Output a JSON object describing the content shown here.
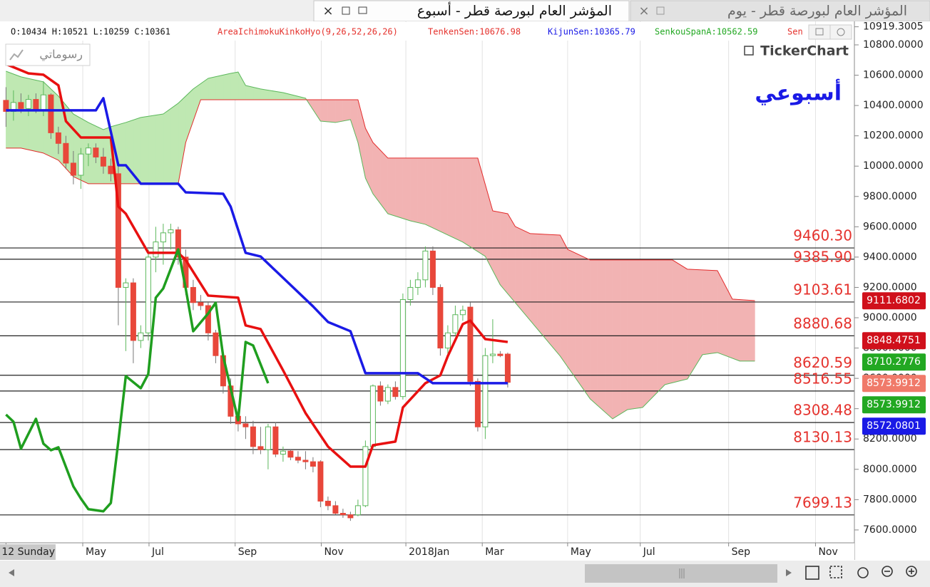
{
  "tabs": {
    "active": "المؤشر العام لبورصة قطر - أسبوع",
    "inactive": "المؤشر العام لبورصة قطر - يوم"
  },
  "toolbar": {
    "drawings_button": "رسوماتي"
  },
  "info": {
    "ohlc": "O:10434 H:10521 L:10259 C:10361",
    "indicator": "AreaIchimokuKinkoHyo(9,26,52,26,26)",
    "tenkan": "TenkenSen:10676.98",
    "kijun": "KijunSen:10365.79",
    "senkou_a": "SenkouSpanA:10562.59",
    "senkou_b": "Sen"
  },
  "chart_data": {
    "type": "candlestick",
    "watermark": "أسبوعي",
    "logo": "TickerChart",
    "up_color": "#5cb85c",
    "down_color": "#e8473a",
    "x": [
      0,
      1,
      2,
      3,
      4,
      5,
      6,
      7,
      8,
      9,
      10,
      11,
      12,
      13,
      14,
      15,
      16,
      17,
      18,
      19,
      20,
      21,
      22,
      23,
      24,
      25,
      26,
      27,
      28,
      29,
      30,
      31,
      32,
      33,
      34,
      35,
      36,
      37,
      38,
      39,
      40,
      41,
      42,
      43,
      44,
      45,
      46,
      47,
      48,
      49,
      50,
      51,
      52,
      53,
      54,
      55,
      56,
      57,
      58,
      59,
      60,
      61,
      62,
      63,
      64,
      65,
      66,
      67
    ],
    "open": [
      10434,
      10361,
      10420,
      10380,
      10440,
      10370,
      10470,
      10220,
      10150,
      10020,
      9940,
      10080,
      10120,
      10060,
      10000,
      9950,
      9200,
      9230,
      8850,
      8900,
      9400,
      9500,
      9560,
      9580,
      9400,
      9200,
      9100,
      9080,
      8900,
      8750,
      8550,
      8350,
      8300,
      8280,
      8150,
      8130,
      8280,
      8100,
      8120,
      8080,
      8060,
      8050,
      8050,
      7790,
      7760,
      7710,
      7700,
      7700,
      7760,
      8150,
      8550,
      8450,
      8540,
      8480,
      9120,
      9200,
      9250,
      9440,
      9200,
      8800,
      8900,
      9020,
      9070,
      8580,
      8280,
      8750,
      8760,
      8760
    ],
    "high": [
      10521,
      10500,
      10480,
      10470,
      10480,
      10560,
      10480,
      10260,
      10200,
      10100,
      10120,
      10150,
      10150,
      10120,
      10050,
      10000,
      9260,
      9260,
      8950,
      9450,
      9600,
      9620,
      9620,
      9600,
      9450,
      9250,
      9150,
      9100,
      8920,
      8780,
      8600,
      8400,
      8350,
      8320,
      8280,
      8300,
      8310,
      8150,
      8130,
      8120,
      8120,
      8080,
      8060,
      7820,
      7790,
      7740,
      7720,
      7800,
      8190,
      8560,
      8580,
      8560,
      8580,
      9160,
      9250,
      9300,
      9470,
      9470,
      9220,
      8950,
      9080,
      9080,
      9100,
      8600,
      8800,
      8990,
      8780,
      8770
    ],
    "low": [
      10259,
      10300,
      10350,
      10330,
      10350,
      10330,
      10180,
      10080,
      9980,
      9880,
      9850,
      10000,
      10020,
      9950,
      9900,
      8950,
      8780,
      8700,
      8800,
      8850,
      9300,
      9350,
      9450,
      9350,
      9150,
      9050,
      9050,
      8850,
      8700,
      8500,
      8300,
      8250,
      8200,
      8100,
      8100,
      8000,
      8080,
      8050,
      8060,
      8040,
      8000,
      7980,
      7750,
      7730,
      7700,
      7680,
      7660,
      7690,
      7750,
      8130,
      8420,
      8430,
      8460,
      8460,
      9080,
      9150,
      9200,
      9150,
      8750,
      8760,
      8880,
      8980,
      8550,
      8250,
      8200,
      8700,
      8740,
      8540
    ],
    "close": [
      10361,
      10420,
      10380,
      10440,
      10370,
      10470,
      10220,
      10150,
      10020,
      9940,
      10080,
      10120,
      10060,
      10000,
      9950,
      9200,
      9230,
      8850,
      8900,
      9400,
      9500,
      9560,
      9580,
      9400,
      9200,
      9100,
      9080,
      8900,
      8750,
      8550,
      8350,
      8300,
      8280,
      8150,
      8130,
      8280,
      8100,
      8120,
      8080,
      8060,
      8050,
      8020,
      7790,
      7760,
      7710,
      7700,
      7680,
      7760,
      8150,
      8550,
      8450,
      8540,
      8480,
      9120,
      9200,
      9250,
      9440,
      9200,
      8800,
      8900,
      9020,
      9050,
      8580,
      8280,
      8750,
      8760,
      8750,
      8574
    ],
    "lines": [
      {
        "color": "#e81010",
        "x": [
          0,
          3,
          5,
          7,
          8,
          10,
          14,
          15,
          16,
          19,
          23,
          24,
          27,
          31,
          32,
          34,
          37,
          40,
          43,
          46,
          48,
          49,
          52,
          53,
          56,
          58,
          59,
          61,
          62,
          64,
          67
        ],
        "values": [
          10673,
          10612,
          10603,
          10533,
          10297,
          10189,
          10189,
          9733,
          9686,
          9428,
          9428,
          9381,
          9146,
          9132,
          8949,
          8925,
          8653,
          8371,
          8150,
          8018,
          8018,
          8159,
          8183,
          8408,
          8568,
          8620,
          8747,
          8958,
          8981,
          8859,
          8840
        ]
      },
      {
        "color": "#1a1ae6",
        "x": [
          0,
          12,
          13,
          15,
          16,
          18,
          23,
          24,
          29,
          30,
          32,
          34,
          36,
          38,
          41,
          43,
          46,
          48,
          55,
          57,
          67
        ],
        "values": [
          10368,
          10368,
          10448,
          10006,
          10006,
          9884,
          9884,
          9827,
          9818,
          9733,
          9428,
          9404,
          9310,
          9216,
          9075,
          8972,
          8911,
          8634,
          8634,
          8568,
          8568
        ]
      },
      {
        "color": "#1f9e1f",
        "x": [
          0,
          1,
          2,
          4,
          5,
          6,
          7,
          9,
          10,
          11,
          13,
          14,
          15,
          16,
          18,
          19,
          20,
          21,
          23,
          24,
          25,
          27,
          28,
          29,
          31,
          32,
          33,
          35
        ],
        "values": [
          8361,
          8314,
          8136,
          8333,
          8169,
          8126,
          8145,
          7887,
          7807,
          7737,
          7723,
          7778,
          8183,
          8615,
          8535,
          8629,
          9132,
          9193,
          9451,
          9193,
          8911,
          9028,
          9099,
          8747,
          8324,
          8840,
          8817,
          8568
        ]
      }
    ],
    "senkou_a": {
      "color": "#5cb85c",
      "x": [
        0,
        2,
        5,
        7,
        9,
        11,
        13,
        14,
        16,
        18,
        21,
        23,
        25,
        27,
        30,
        31,
        32,
        34,
        37,
        40,
        42,
        44,
        46,
        47,
        48,
        49,
        51,
        54,
        56,
        61,
        64,
        66,
        70,
        74,
        78,
        81,
        83,
        85,
        88,
        91,
        93,
        95,
        98,
        100
      ],
      "values": [
        10626,
        10589,
        10556,
        10462,
        10344,
        10288,
        10241,
        10260,
        10288,
        10321,
        10344,
        10415,
        10509,
        10579,
        10612,
        10621,
        10532,
        10509,
        10485,
        10448,
        10297,
        10288,
        10307,
        10156,
        9921,
        9818,
        9686,
        9639,
        9616,
        9499,
        9405,
        9217,
        8982,
        8747,
        8465,
        8333,
        8394,
        8408,
        8559,
        8596,
        8756,
        8770,
        8714,
        8714
      ]
    },
    "senkou_b": {
      "color": "#e32b2b",
      "x": [
        0,
        2,
        5,
        7,
        9,
        11,
        23,
        24,
        26,
        47,
        48,
        49,
        51,
        63,
        65,
        67,
        68,
        70,
        74,
        75,
        78,
        89,
        91,
        95,
        97,
        100
      ],
      "values": [
        10119,
        10119,
        10086,
        10039,
        9931,
        9884,
        9884,
        10156,
        10438,
        10438,
        10250,
        10156,
        10053,
        10053,
        9705,
        9686,
        9602,
        9555,
        9545,
        9451,
        9381,
        9381,
        9320,
        9311,
        9123,
        9113
      ]
    },
    "cloud_colors": [
      "#bfe8b2",
      "#f2b3b3"
    ],
    "levels": [
      {
        "value": 9460.3,
        "label": "9460.30"
      },
      {
        "value": 9385.9,
        "label": "9385.90"
      },
      {
        "value": 9103.61,
        "label": "9103.61"
      },
      {
        "value": 8880.68,
        "label": "8880.68"
      },
      {
        "value": 8620.59,
        "label": "8620.59"
      },
      {
        "value": 8516.55,
        "label": "8516.55"
      },
      {
        "value": 8308.48,
        "label": "8308.48"
      },
      {
        "value": 8130.13,
        "label": "8130.13"
      },
      {
        "value": 7699.13,
        "label": "7699.13"
      }
    ],
    "level_color": "#222222",
    "level_label_color": "#e5322d",
    "badges": [
      {
        "value": 9111.6802,
        "color": "#d0101b"
      },
      {
        "value": 8848.4751,
        "color": "#d0101b"
      },
      {
        "value": 8710.2776,
        "color": "#22a822"
      },
      {
        "value": 8573.9912,
        "color": "#f07a6a"
      },
      {
        "value": 8573.9912,
        "color": "#22a822"
      },
      {
        "value": 8572.0801,
        "color": "#1a1ae6"
      }
    ],
    "xlim": [
      -0.8,
      113.2
    ],
    "xticks": [
      {
        "value": 0,
        "label": "12 Sunday"
      },
      {
        "value": 10.25,
        "label": "May"
      },
      {
        "value": 19.1,
        "label": "Jul"
      },
      {
        "value": 30.6,
        "label": "Sep"
      },
      {
        "value": 42.1,
        "label": "Nov"
      },
      {
        "value": 53.4,
        "label": "2018Jan"
      },
      {
        "value": 63.6,
        "label": "Mar"
      },
      {
        "value": 75,
        "label": "May"
      },
      {
        "value": 84.7,
        "label": "Jul"
      },
      {
        "value": 96.5,
        "label": "Sep"
      },
      {
        "value": 108.1,
        "label": "Nov"
      }
    ],
    "ylim": [
      7515,
      10955
    ],
    "yticks": [
      {
        "value": 7600,
        "label": "7600.0000"
      },
      {
        "value": 7800,
        "label": "7800.0000"
      },
      {
        "value": 8000,
        "label": "8000.0000"
      },
      {
        "value": 8200,
        "label": "8200.0000"
      },
      {
        "value": 8400,
        "label": "8400.0000"
      },
      {
        "value": 8600,
        "label": "8600.0000"
      },
      {
        "value": 8800,
        "label": "8800.0000"
      },
      {
        "value": 9000,
        "label": "9000.0000"
      },
      {
        "value": 9200,
        "label": "9200.0000"
      },
      {
        "value": 9400,
        "label": "9400.0000"
      },
      {
        "value": 9600,
        "label": "9600.0000"
      },
      {
        "value": 9800,
        "label": "9800.0000"
      },
      {
        "value": 10000,
        "label": "10000.0000"
      },
      {
        "value": 10200,
        "label": "10200.0000"
      },
      {
        "value": 10400,
        "label": "10400.0000"
      },
      {
        "value": 10600,
        "label": "10600.0000"
      },
      {
        "value": 10800,
        "label": "10800.0000"
      },
      10919.3005
    ],
    "grid": true
  }
}
